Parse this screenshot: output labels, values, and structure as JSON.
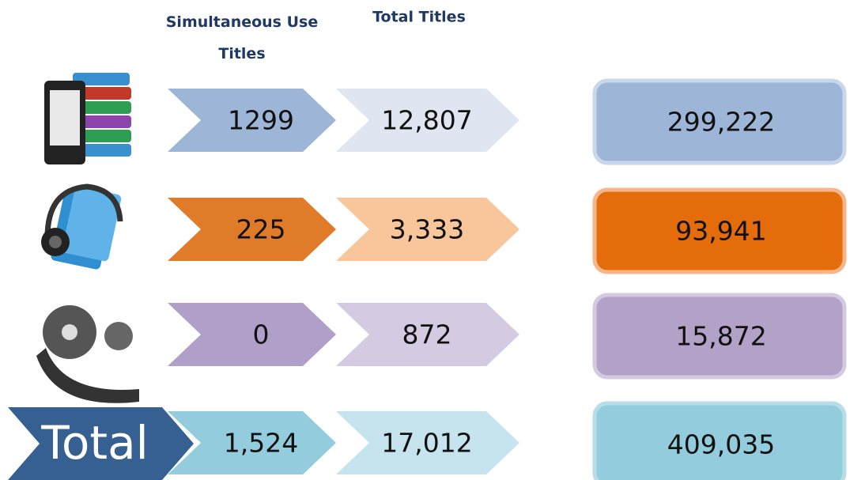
{
  "headers": {
    "simultaneous": "Simultaneous Use Titles",
    "total": "Total Titles"
  },
  "rows": [
    {
      "simultaneous": "1299",
      "total": "12,807",
      "count": "299,222"
    },
    {
      "simultaneous": "225",
      "total": "3,333",
      "count": "93,941"
    },
    {
      "simultaneous": "0",
      "total": "872",
      "count": "15,872"
    }
  ],
  "total_row": {
    "label": "Total",
    "simultaneous": "1,524",
    "total": "17,012",
    "count": "409,035"
  }
}
